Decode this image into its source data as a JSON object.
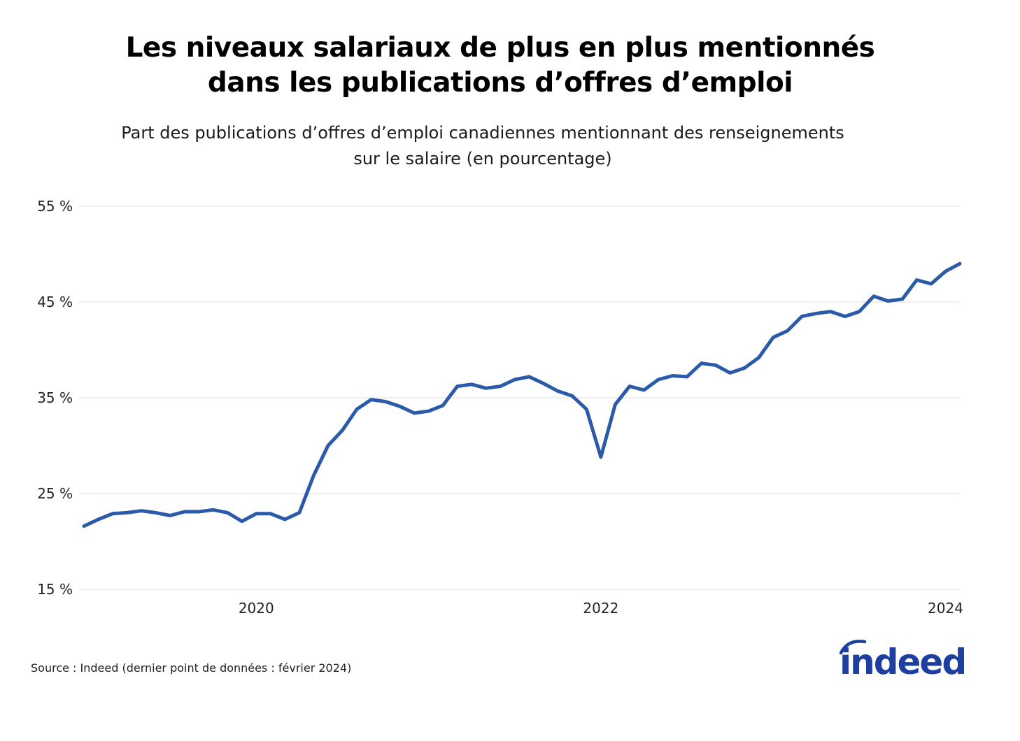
{
  "title_line1": "Les niveaux salariaux de plus en plus mentionnés",
  "title_line2": "dans les publications d’offres d’emploi",
  "subtitle_line1": "Part des publications d’offres d’emploi canadiennes mentionnant des renseignements",
  "subtitle_line2": "sur le salaire (en pourcentage)",
  "source": "Source : Indeed (dernier point de données : février 2024)",
  "logo_text": "indeed",
  "colors": {
    "line": "#2B5BA8",
    "grid": "#dddddd",
    "logo": "#1d3fa0"
  },
  "chart_data": {
    "type": "line",
    "title": "Les niveaux salariaux de plus en plus mentionnés dans les publications d’offres d’emploi",
    "subtitle": "Part des publications d’offres d’emploi canadiennes mentionnant des renseignements sur le salaire (en pourcentage)",
    "xlabel": "",
    "ylabel": "",
    "ylim": [
      15,
      55
    ],
    "yticks": [
      15,
      25,
      35,
      45,
      55
    ],
    "ytick_labels": [
      "15 %",
      "25 %",
      "35 %",
      "45 %",
      "55 %"
    ],
    "xticks": [
      "2020-01",
      "2022-01",
      "2024-01"
    ],
    "xtick_labels": [
      "2020",
      "2022",
      "2024"
    ],
    "grid": true,
    "legend": "none",
    "series": [
      {
        "x": [
          "2019-01",
          "2019-02",
          "2019-03",
          "2019-04",
          "2019-05",
          "2019-06",
          "2019-07",
          "2019-08",
          "2019-09",
          "2019-10",
          "2019-11",
          "2019-12",
          "2020-01",
          "2020-02",
          "2020-03",
          "2020-04",
          "2020-05",
          "2020-06",
          "2020-07",
          "2020-08",
          "2020-09",
          "2020-10",
          "2020-11",
          "2020-12",
          "2021-01",
          "2021-02",
          "2021-03",
          "2021-04",
          "2021-05",
          "2021-06",
          "2021-07",
          "2021-08",
          "2021-09",
          "2021-10",
          "2021-11",
          "2021-12",
          "2022-01",
          "2022-02",
          "2022-03",
          "2022-04",
          "2022-05",
          "2022-06",
          "2022-07",
          "2022-08",
          "2022-09",
          "2022-10",
          "2022-11",
          "2022-12",
          "2023-01",
          "2023-02",
          "2023-03",
          "2023-04",
          "2023-05",
          "2023-06",
          "2023-07",
          "2023-08",
          "2023-09",
          "2023-10",
          "2023-11",
          "2023-12",
          "2024-01",
          "2024-02"
        ],
        "values": [
          21.6,
          22.3,
          22.9,
          23.0,
          23.2,
          23.0,
          22.7,
          23.1,
          23.1,
          23.3,
          23.0,
          22.1,
          22.9,
          22.9,
          22.3,
          23.0,
          26.9,
          30.0,
          31.6,
          33.8,
          34.8,
          34.6,
          34.1,
          33.4,
          33.6,
          34.2,
          36.2,
          36.4,
          36.0,
          36.2,
          36.9,
          37.2,
          36.5,
          35.7,
          35.2,
          33.8,
          28.8,
          34.3,
          36.2,
          35.8,
          36.9,
          37.3,
          37.2,
          38.6,
          38.4,
          37.6,
          38.1,
          39.2,
          41.3,
          42.0,
          43.5,
          43.8,
          44.0,
          43.5,
          44.0,
          45.6,
          45.1,
          45.3,
          47.3,
          46.9,
          48.2,
          49.0
        ]
      }
    ]
  }
}
